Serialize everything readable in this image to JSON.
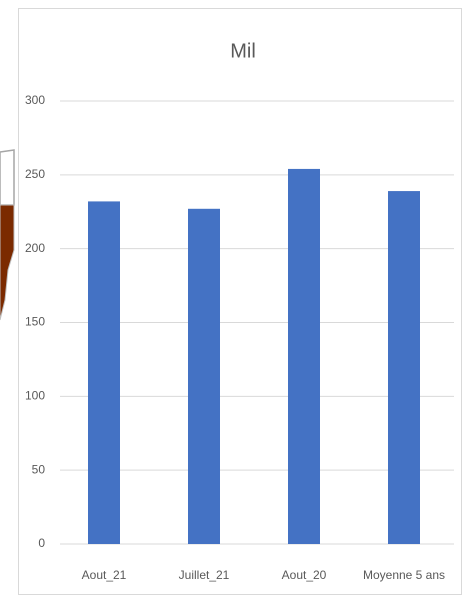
{
  "chart_data": {
    "type": "bar",
    "title": "Mil",
    "categories": [
      "Aout_21",
      "Juillet_21",
      "Aout_20",
      "Moyenne 5 ans"
    ],
    "values": [
      232,
      227,
      254,
      239
    ],
    "color": "#4472c4",
    "ylim": [
      0,
      300
    ],
    "yticks": [
      0,
      50,
      100,
      150,
      200,
      250,
      300
    ],
    "grid": true
  }
}
